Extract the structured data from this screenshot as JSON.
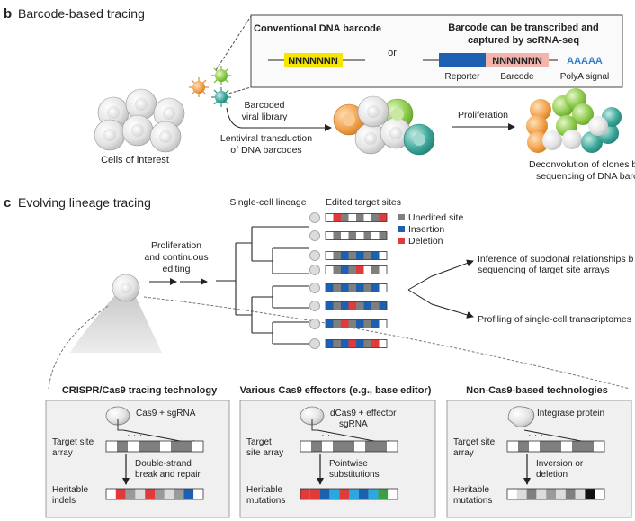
{
  "panel_b": {
    "letter": "b",
    "title": "Barcode-based tracing",
    "inset": {
      "conventional_label": "Conventional DNA barcode",
      "or_label": "or",
      "barcode_seq": "NNNNNNN",
      "transcribed_label_line1": "Barcode can be transcribed and",
      "transcribed_label_line2": "captured by scRNA-seq",
      "transcribed_seq": "NNNNNNN",
      "polya_seq": "AAAAA",
      "reporter_label": "Reporter",
      "barcode_label": "Barcode",
      "polya_label": "PolyA signal"
    },
    "cells_label": "Cells of interest",
    "viral_label_line1": "Barcoded",
    "viral_label_line2": "viral library",
    "transduction_line1": "Lentiviral transduction",
    "transduction_line2": "of DNA barcodes",
    "proliferation_label": "Proliferation",
    "deconv_line1": "Deconvolution of clones by dee",
    "deconv_line2": "sequencing of DNA barcodes"
  },
  "panel_c": {
    "letter": "c",
    "title": "Evolving lineage tracing",
    "single_cell_lineage": "Single-cell lineage",
    "edited_target_sites": "Edited target sites",
    "proliferation_line1": "Proliferation",
    "proliferation_line2": "and continuous",
    "proliferation_line3": "editing",
    "legend": [
      {
        "label": "Unedited site",
        "color": "#7f7f7f"
      },
      {
        "label": "Insertion",
        "color": "#1f5fb0"
      },
      {
        "label": "Deletion",
        "color": "#e03a3a"
      }
    ],
    "inference_line1": "Inference of subclonal relationships b",
    "inference_line2": "sequencing of target site arrays",
    "profiling_label": "Profiling of single-cell transcriptomes",
    "sub_panels": [
      {
        "title": "CRISPR/Cas9 tracing technology",
        "protein_line1": "Cas9 + sgRNA",
        "protein_line2": "",
        "array_line1": "Target site",
        "array_line2": "array",
        "mech_line1": "Double-strand",
        "mech_line2": "break and repair",
        "out_line1": "Heritable",
        "out_line2": "indels",
        "dots": "· · ·"
      },
      {
        "title": "Various Cas9 effectors (e.g., base editor)",
        "protein_line1": "dCas9 + effector",
        "protein_line2": "sgRNA",
        "array_line1": "Target",
        "array_line2": "site array",
        "mech_line1": "Pointwise",
        "mech_line2": "substitutions",
        "out_line1": "Heritable",
        "out_line2": "mutations",
        "dots": "· · ·"
      },
      {
        "title": "Non-Cas9-based technologies",
        "protein_line1": "Integrase protein",
        "protein_line2": "",
        "array_line1": "Target site",
        "array_line2": "array",
        "mech_line1": "Inversion or",
        "mech_line2": "deletion",
        "out_line1": "Heritable",
        "out_line2": "mutations",
        "dots": "· · ·"
      }
    ]
  },
  "colors": {
    "barcode_yellow": "#f4e600",
    "reporter_blue": "#1f5fb0",
    "barcode_pink": "#f2b4ad",
    "polya_blue": "#2f7fd0",
    "cell_orange": "#f2a04a",
    "cell_green": "#8cc84b",
    "cell_teal": "#3aa59a",
    "cell_gray": "#e6e6e6"
  }
}
